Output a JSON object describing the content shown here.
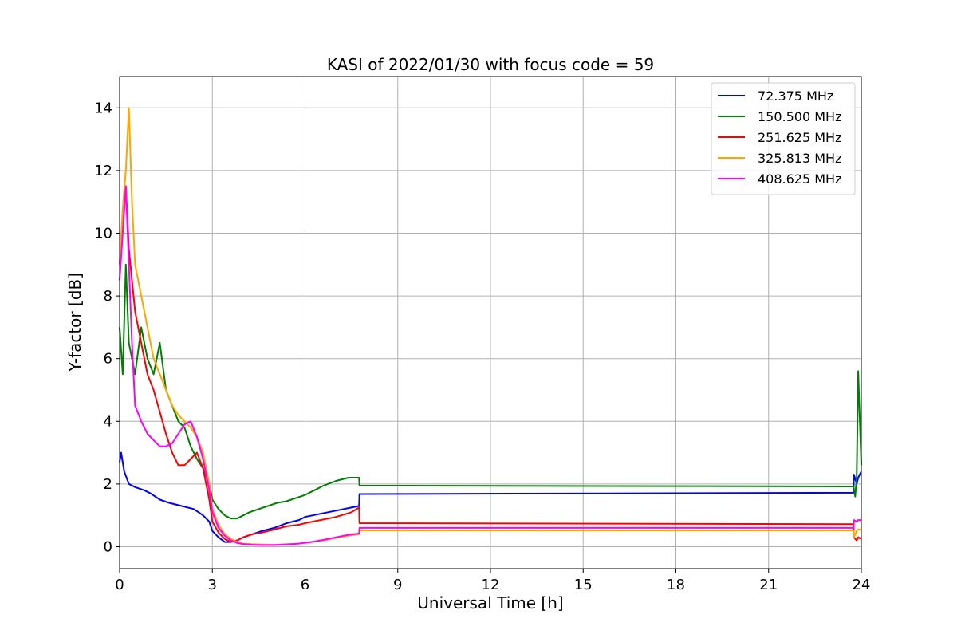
{
  "chart_data": {
    "type": "line",
    "title": "KASI of 2022/01/30 with focus code = 59",
    "xlabel": "Universal Time [h]",
    "ylabel": "Y-factor [dB]",
    "xlim": [
      0,
      24
    ],
    "ylim": [
      -0.7,
      15
    ],
    "xticks": [
      0,
      3,
      6,
      9,
      12,
      15,
      18,
      21,
      24
    ],
    "xtick_labels": [
      "0",
      "3",
      "6",
      "9",
      "12",
      "15",
      "18",
      "21",
      "24"
    ],
    "yticks": [
      0,
      2,
      4,
      6,
      8,
      10,
      12,
      14
    ],
    "ytick_labels": [
      "0",
      "2",
      "4",
      "6",
      "8",
      "10",
      "12",
      "14"
    ],
    "grid": true,
    "legend_position": "top-right",
    "series": [
      {
        "name": " 72.375 MHz",
        "color": "#0000ff",
        "x": [
          0,
          0.05,
          0.15,
          0.3,
          0.5,
          0.8,
          1.0,
          1.3,
          1.6,
          2.0,
          2.4,
          2.7,
          2.9,
          3.0,
          3.2,
          3.4,
          3.6,
          3.8,
          4.0,
          4.3,
          4.6,
          5.0,
          5.4,
          5.8,
          6.0,
          6.5,
          7.0,
          7.5,
          7.75,
          7.76,
          23.75,
          23.76,
          23.85,
          23.9,
          24
        ],
        "y": [
          2.7,
          3.0,
          2.4,
          2.0,
          1.9,
          1.8,
          1.7,
          1.5,
          1.4,
          1.3,
          1.2,
          1.0,
          0.8,
          0.5,
          0.3,
          0.15,
          0.15,
          0.2,
          0.3,
          0.4,
          0.5,
          0.6,
          0.75,
          0.85,
          0.95,
          1.05,
          1.15,
          1.25,
          1.3,
          1.68,
          1.72,
          2.3,
          2.0,
          2.2,
          2.4
        ]
      },
      {
        "name": "150.500 MHz",
        "color": "#008000",
        "x": [
          0,
          0.1,
          0.2,
          0.3,
          0.5,
          0.7,
          0.9,
          1.1,
          1.3,
          1.5,
          1.7,
          1.9,
          2.1,
          2.3,
          2.5,
          2.7,
          2.9,
          3.0,
          3.2,
          3.4,
          3.6,
          3.8,
          4.0,
          4.2,
          4.5,
          4.8,
          5.1,
          5.4,
          5.7,
          6.0,
          6.3,
          6.6,
          7.0,
          7.4,
          7.75,
          7.76,
          23.75,
          23.8,
          23.85,
          23.9,
          24
        ],
        "y": [
          7.0,
          5.5,
          9.0,
          6.5,
          5.5,
          7.0,
          6.0,
          5.5,
          6.5,
          5.0,
          4.5,
          4.0,
          3.8,
          3.2,
          2.8,
          2.5,
          2.0,
          1.5,
          1.2,
          1.0,
          0.9,
          0.9,
          1.0,
          1.1,
          1.2,
          1.3,
          1.4,
          1.45,
          1.55,
          1.65,
          1.8,
          1.95,
          2.1,
          2.2,
          2.2,
          1.95,
          1.92,
          1.6,
          2.2,
          5.6,
          2.6
        ]
      },
      {
        "name": "251.625 MHz",
        "color": "#ff0000",
        "x": [
          0,
          0.1,
          0.2,
          0.3,
          0.5,
          0.7,
          0.9,
          1.1,
          1.3,
          1.5,
          1.7,
          1.9,
          2.1,
          2.3,
          2.5,
          2.7,
          2.9,
          3.0,
          3.2,
          3.4,
          3.6,
          3.8,
          4.0,
          4.3,
          4.6,
          5.0,
          5.4,
          5.8,
          6.0,
          6.5,
          7.0,
          7.5,
          7.75,
          7.76,
          23.75,
          23.76,
          23.85,
          23.9,
          24
        ],
        "y": [
          9.0,
          10.5,
          11.5,
          9.5,
          7.5,
          6.5,
          5.5,
          5.0,
          4.3,
          3.6,
          3.0,
          2.6,
          2.6,
          2.8,
          3.0,
          2.5,
          1.5,
          0.8,
          0.45,
          0.25,
          0.15,
          0.2,
          0.3,
          0.4,
          0.45,
          0.55,
          0.65,
          0.7,
          0.75,
          0.85,
          0.95,
          1.1,
          1.25,
          0.75,
          0.72,
          0.3,
          0.2,
          0.3,
          0.25
        ]
      },
      {
        "name": "325.813 MHz",
        "color": "#ffa500",
        "x": [
          0,
          0.1,
          0.2,
          0.3,
          0.4,
          0.5,
          0.7,
          0.9,
          1.1,
          1.3,
          1.5,
          1.7,
          1.9,
          2.1,
          2.3,
          2.5,
          2.7,
          2.9,
          3.0,
          3.2,
          3.4,
          3.6,
          3.8,
          4.0,
          4.3,
          4.6,
          5.0,
          5.4,
          5.8,
          6.2,
          6.6,
          7.0,
          7.4,
          7.75,
          7.76,
          23.75,
          23.76,
          23.85,
          23.9,
          24
        ],
        "y": [
          9.0,
          10.8,
          12.0,
          14.0,
          11.0,
          9.0,
          8.0,
          7.0,
          6.0,
          5.5,
          5.0,
          4.5,
          4.2,
          4.0,
          3.8,
          3.5,
          3.0,
          2.0,
          1.2,
          0.7,
          0.4,
          0.25,
          0.15,
          0.1,
          0.08,
          0.07,
          0.06,
          0.08,
          0.1,
          0.15,
          0.2,
          0.28,
          0.35,
          0.4,
          0.52,
          0.52,
          0.3,
          0.5,
          0.55,
          0.55
        ]
      },
      {
        "name": "408.625 MHz",
        "color": "#ff00ff",
        "x": [
          0,
          0.1,
          0.2,
          0.3,
          0.4,
          0.5,
          0.7,
          0.9,
          1.1,
          1.3,
          1.5,
          1.7,
          1.9,
          2.1,
          2.3,
          2.5,
          2.7,
          2.9,
          3.0,
          3.2,
          3.4,
          3.6,
          3.8,
          4.0,
          4.3,
          4.6,
          5.0,
          5.4,
          5.8,
          6.2,
          6.6,
          7.0,
          7.4,
          7.75,
          7.76,
          23.75,
          23.76,
          23.85,
          23.9,
          24
        ],
        "y": [
          8.5,
          10.0,
          11.5,
          9.0,
          6.5,
          4.5,
          4.0,
          3.6,
          3.4,
          3.2,
          3.2,
          3.3,
          3.6,
          3.9,
          4.0,
          3.5,
          2.8,
          1.8,
          1.1,
          0.6,
          0.35,
          0.2,
          0.12,
          0.08,
          0.06,
          0.05,
          0.05,
          0.07,
          0.1,
          0.15,
          0.22,
          0.3,
          0.38,
          0.42,
          0.6,
          0.6,
          0.85,
          0.8,
          0.85,
          0.85
        ]
      }
    ]
  }
}
